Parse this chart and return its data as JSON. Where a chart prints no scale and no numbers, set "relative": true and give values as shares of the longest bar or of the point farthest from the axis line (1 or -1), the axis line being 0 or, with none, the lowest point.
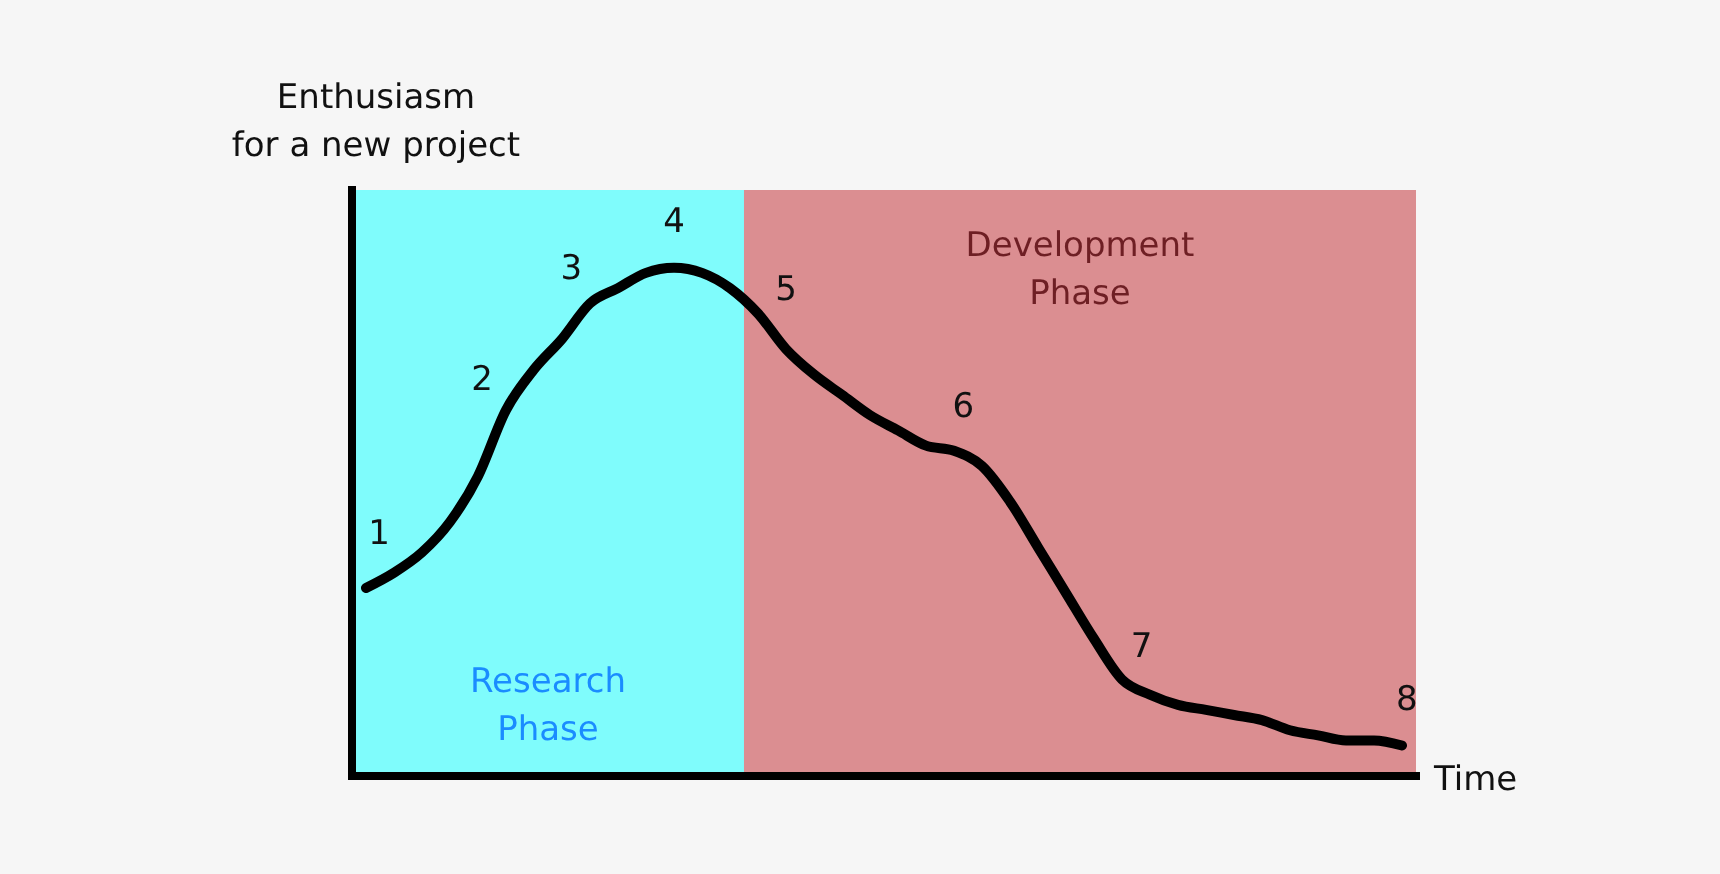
{
  "chart_data": {
    "type": "line",
    "relative": true,
    "categories": [
      null,
      null,
      null,
      null,
      null,
      null,
      null,
      null,
      null,
      null,
      null,
      null,
      null,
      null,
      null,
      null,
      null,
      null,
      null,
      null,
      null,
      null,
      null,
      null,
      null,
      null,
      null,
      null,
      null,
      null,
      null,
      null,
      null,
      null,
      null,
      null,
      null,
      null
    ],
    "values": [
      0.37,
      0.4,
      0.44,
      0.5,
      0.59,
      0.72,
      0.8,
      0.86,
      0.93,
      0.96,
      0.99,
      1,
      0.99,
      0.96,
      0.91,
      0.84,
      0.79,
      0.75,
      0.71,
      0.68,
      0.65,
      0.64,
      0.61,
      0.54,
      0.45,
      0.36,
      0.27,
      0.19,
      0.16,
      0.14,
      0.13,
      0.12,
      0.11,
      0.09,
      0.08,
      0.07,
      0.07,
      0.06
    ],
    "color": "#000000",
    "marker": "none",
    "line_style": "solid",
    "xlabel": "Time",
    "ylabel": "Enthusiasm\nfor a new project",
    "annotations": [
      "Research\nPhase",
      "Development\nPhase",
      {
        "text": "1",
        "y": 0.4
      },
      "2",
      {
        "text": "3",
        "y": 0.93
      },
      {
        "text": "4",
        "y": 1
      },
      "5",
      {
        "text": "6",
        "y": 0.64
      },
      {
        "text": "7",
        "y": 0.19
      },
      {
        "text": "8",
        "y": 0.06
      }
    ]
  }
}
